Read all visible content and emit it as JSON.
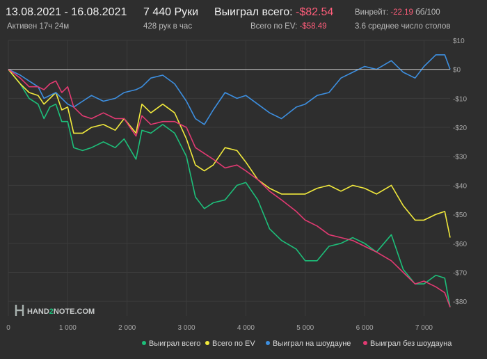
{
  "header": {
    "date_range": "13.08.2021 - 16.08.2021",
    "active_time": "Активен 17ч 24м",
    "hands": "7 440 Руки",
    "hands_per_hour": "428 рук в час",
    "won_label": "Выиграл всего:",
    "won_value": "-$82.54",
    "ev_label": "Всего по EV:",
    "ev_value": "-$58.49",
    "winrate_label": "Винрейт:",
    "winrate_value": "-22.19",
    "winrate_unit": "бб/100",
    "tables": "3.6 среднее число столов"
  },
  "watermark": {
    "text_a": "HAND",
    "text_b": "2",
    "text_c": "NOTE.COM"
  },
  "colors": {
    "background": "#2e2e2e",
    "grid": "#3c3c3c",
    "zero_line": "#bdbdbd",
    "won": "#1dbf7a",
    "ev": "#f2ea3c",
    "showdown": "#3d8fe0",
    "non_showdown": "#e23a72",
    "negative_text": "#ff5d7a"
  },
  "chart_data": {
    "type": "line",
    "title": "",
    "xlabel": "",
    "ylabel": "",
    "xlim": [
      0,
      7440
    ],
    "ylim": [
      -85,
      10
    ],
    "x_ticks": [
      0,
      1000,
      2000,
      3000,
      4000,
      5000,
      6000,
      7000
    ],
    "x_tick_labels": [
      "0",
      "1 000",
      "2 000",
      "3 000",
      "4 000",
      "5 000",
      "6 000",
      "7 000"
    ],
    "y_ticks": [
      10,
      0,
      -10,
      -20,
      -30,
      -40,
      -50,
      -60,
      -70,
      -80
    ],
    "y_tick_labels": [
      "$10",
      "$0",
      "-$10",
      "-$20",
      "-$30",
      "-$40",
      "-$50",
      "-$60",
      "-$70",
      "-$80"
    ],
    "grid": true,
    "legend_position": "bottom-right",
    "series": [
      {
        "name": "Выиграл всего",
        "color": "#1dbf7a",
        "x": [
          0,
          200,
          350,
          500,
          600,
          700,
          800,
          900,
          1000,
          1100,
          1250,
          1400,
          1600,
          1800,
          1950,
          2150,
          2250,
          2400,
          2600,
          2800,
          3000,
          3150,
          3300,
          3450,
          3650,
          3850,
          4000,
          4200,
          4400,
          4600,
          4850,
          5000,
          5200,
          5400,
          5600,
          5800,
          6000,
          6200,
          6450,
          6650,
          6850,
          7000,
          7200,
          7350,
          7440
        ],
        "y": [
          0,
          -5,
          -10,
          -12,
          -17,
          -13,
          -12,
          -18,
          -18,
          -27,
          -28,
          -27,
          -25,
          -27,
          -24,
          -31,
          -21,
          -22,
          -19,
          -22,
          -30,
          -44,
          -48,
          -46,
          -45,
          -40,
          -39,
          -45,
          -55,
          -59,
          -62,
          -66,
          -66,
          -61,
          -60,
          -58,
          -60,
          -63,
          -57,
          -69,
          -74,
          -74,
          -71,
          -72,
          -82
        ]
      },
      {
        "name": "Всего по EV",
        "color": "#f2ea3c",
        "x": [
          0,
          200,
          350,
          500,
          600,
          700,
          800,
          900,
          1000,
          1100,
          1250,
          1400,
          1600,
          1800,
          1950,
          2150,
          2250,
          2400,
          2600,
          2800,
          3000,
          3150,
          3300,
          3450,
          3650,
          3850,
          4000,
          4200,
          4400,
          4600,
          4850,
          5000,
          5200,
          5400,
          5600,
          5800,
          6000,
          6200,
          6450,
          6650,
          6850,
          7000,
          7200,
          7350,
          7440
        ],
        "y": [
          0,
          -5,
          -8,
          -9,
          -12,
          -10,
          -8,
          -14,
          -13,
          -22,
          -22,
          -20,
          -19,
          -21,
          -17,
          -22,
          -12,
          -15,
          -12,
          -15,
          -24,
          -33,
          -35,
          -33,
          -27,
          -28,
          -32,
          -38,
          -41,
          -43,
          -43,
          -43,
          -41,
          -40,
          -42,
          -40,
          -41,
          -43,
          -40,
          -47,
          -52,
          -52,
          -50,
          -49,
          -58
        ]
      },
      {
        "name": "Выиграл на шоудауне",
        "color": "#3d8fe0",
        "x": [
          0,
          200,
          350,
          500,
          600,
          700,
          800,
          900,
          1000,
          1100,
          1250,
          1400,
          1600,
          1800,
          1950,
          2150,
          2250,
          2400,
          2600,
          2800,
          3000,
          3150,
          3300,
          3450,
          3650,
          3850,
          4000,
          4200,
          4400,
          4600,
          4850,
          5000,
          5200,
          5400,
          5600,
          5800,
          6000,
          6200,
          6450,
          6650,
          6850,
          7000,
          7200,
          7350,
          7440
        ],
        "y": [
          0,
          -2,
          -4,
          -6,
          -10,
          -9,
          -8,
          -10,
          -12,
          -13,
          -11,
          -9,
          -11,
          -10,
          -8,
          -7,
          -6,
          -3,
          -2,
          -5,
          -11,
          -17,
          -19,
          -14,
          -8,
          -10,
          -9,
          -12,
          -15,
          -17,
          -13,
          -12,
          -9,
          -8,
          -3,
          -1,
          1,
          0,
          3,
          -1,
          -3,
          1,
          5,
          5,
          0
        ]
      },
      {
        "name": "Выиграл без шоудауна",
        "color": "#e23a72",
        "x": [
          0,
          200,
          350,
          500,
          600,
          700,
          800,
          900,
          1000,
          1100,
          1250,
          1400,
          1600,
          1800,
          1950,
          2150,
          2250,
          2400,
          2600,
          2800,
          3000,
          3150,
          3300,
          3450,
          3650,
          3850,
          4000,
          4200,
          4400,
          4600,
          4850,
          5000,
          5200,
          5400,
          5600,
          5800,
          6000,
          6200,
          6450,
          6650,
          6850,
          7000,
          7200,
          7350,
          7440
        ],
        "y": [
          0,
          -3,
          -6,
          -6,
          -7,
          -5,
          -4,
          -8,
          -6,
          -13,
          -16,
          -17,
          -15,
          -17,
          -17,
          -23,
          -16,
          -19,
          -18,
          -18,
          -20,
          -27,
          -29,
          -31,
          -34,
          -33,
          -35,
          -38,
          -42,
          -45,
          -49,
          -52,
          -54,
          -57,
          -58,
          -59,
          -61,
          -63,
          -66,
          -70,
          -74,
          -73,
          -75,
          -77,
          -82
        ]
      }
    ]
  }
}
